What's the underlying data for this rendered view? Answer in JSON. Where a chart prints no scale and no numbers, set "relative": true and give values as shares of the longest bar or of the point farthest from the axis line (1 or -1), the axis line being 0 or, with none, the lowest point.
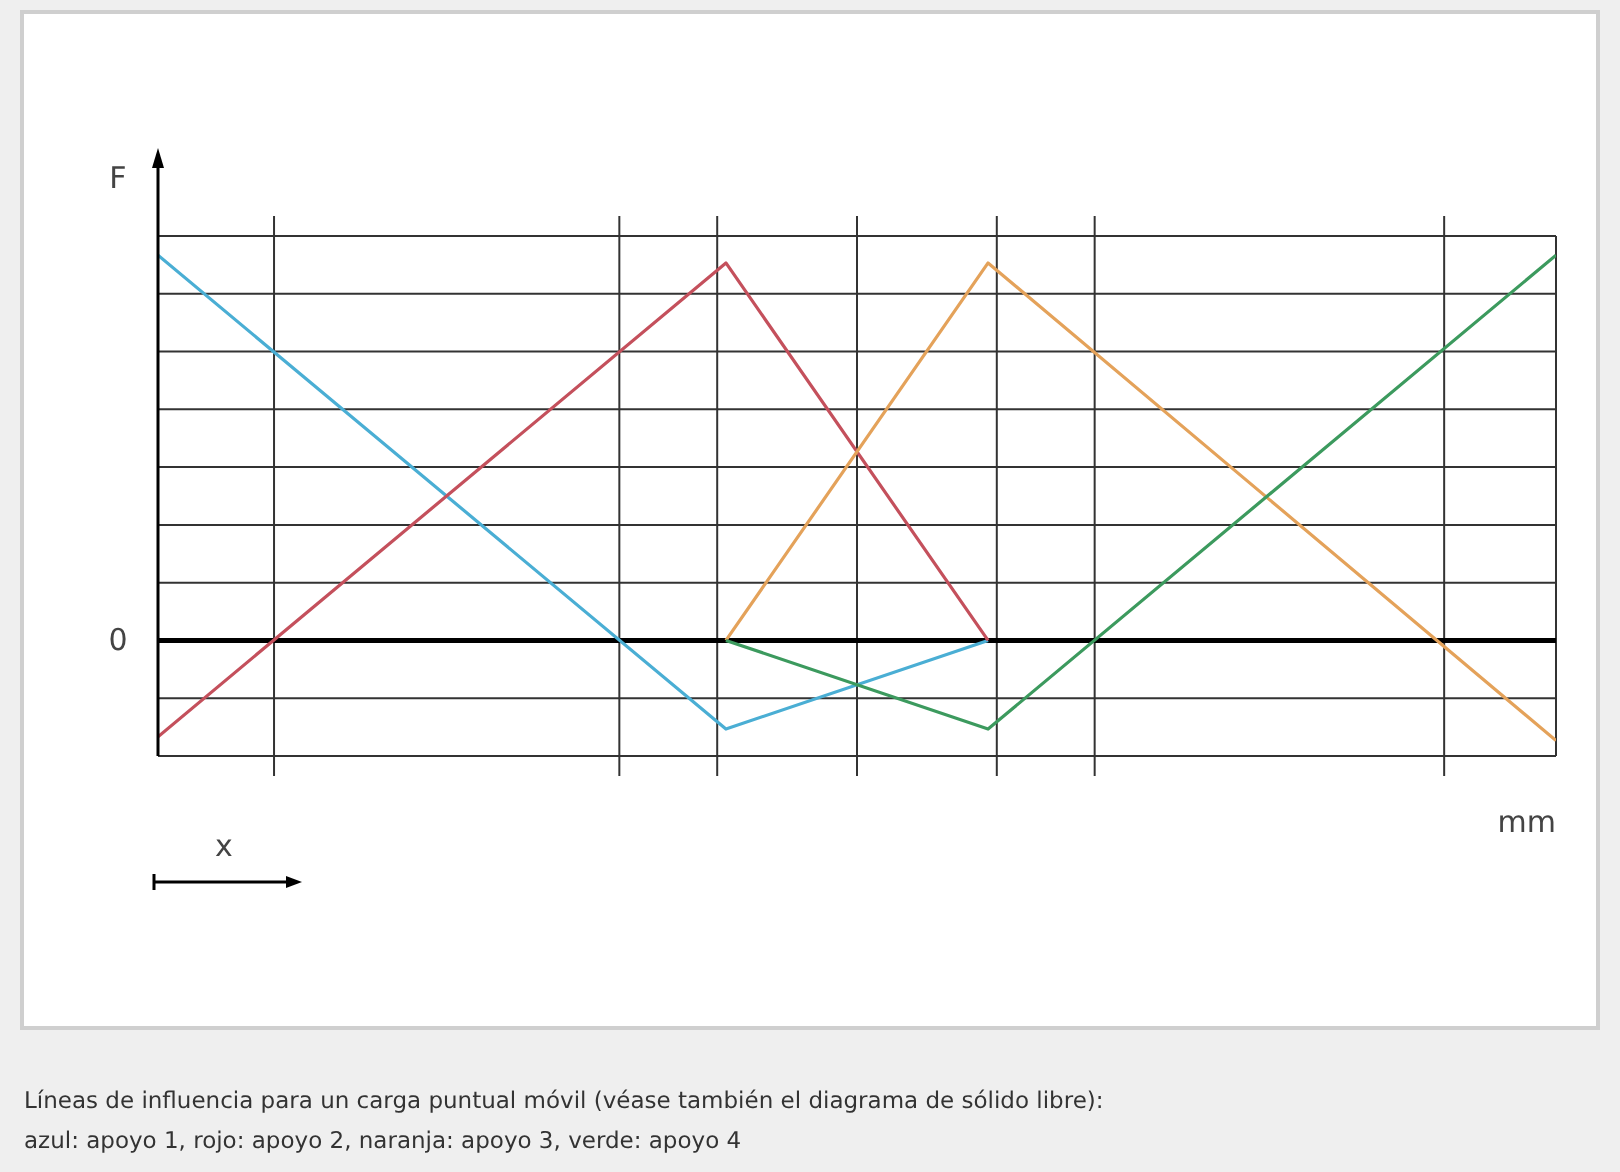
{
  "chart_data": {
    "type": "line",
    "relative": true,
    "ylabel": "F",
    "xlabel": "mm",
    "grid": true,
    "categories": [
      null,
      null,
      null,
      null,
      null,
      null,
      null,
      null,
      null,
      null,
      null,
      null,
      null,
      null,
      null,
      null,
      null,
      null,
      null,
      null,
      null,
      null,
      null,
      null,
      null,
      null,
      null,
      null,
      null,
      null,
      null,
      null,
      null
    ],
    "series": [
      {
        "color": "#4aaed4",
        "values": [
          1,
          null,
          null,
          null,
          null,
          null,
          null,
          null,
          null,
          null,
          null,
          null,
          null,
          -0.23,
          null,
          null,
          null,
          null,
          null,
          0,
          null,
          null,
          null,
          null,
          null,
          null,
          null,
          null,
          null,
          null,
          null,
          null,
          null
        ]
      },
      {
        "color": "#c4505c",
        "values": [
          -0.25,
          null,
          null,
          null,
          null,
          null,
          null,
          null,
          null,
          null,
          null,
          null,
          null,
          0.98,
          null,
          null,
          null,
          null,
          null,
          0,
          null,
          null,
          null,
          null,
          null,
          null,
          null,
          null,
          null,
          null,
          null,
          null,
          null
        ]
      },
      {
        "color": "#e4a25a",
        "values": [
          null,
          null,
          null,
          null,
          null,
          null,
          null,
          null,
          null,
          null,
          null,
          null,
          null,
          0,
          null,
          null,
          null,
          null,
          null,
          0.98,
          null,
          null,
          null,
          null,
          null,
          null,
          null,
          null,
          null,
          null,
          null,
          null,
          -0.26
        ]
      },
      {
        "color": "#3c9a5e",
        "values": [
          null,
          null,
          null,
          null,
          null,
          null,
          null,
          null,
          null,
          null,
          null,
          null,
          null,
          0,
          null,
          null,
          null,
          null,
          null,
          -0.23,
          null,
          null,
          null,
          null,
          null,
          null,
          null,
          null,
          null,
          null,
          null,
          null,
          1
        ]
      }
    ],
    "annotations": [
      "0",
      "x",
      "Líneas de influencia para un carga puntual móvil (véase también el diagrama de sólido libre):",
      "azul: apoyo 1, rojo: apoyo 2, naranja: apoyo 3, verde: apoyo 4"
    ]
  }
}
